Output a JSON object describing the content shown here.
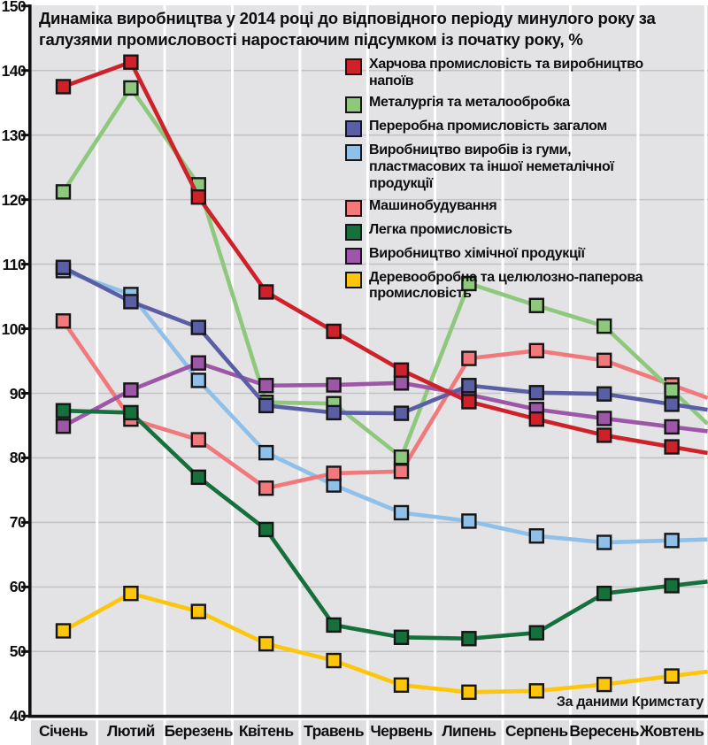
{
  "chart_data": {
    "type": "line",
    "title": "Динаміка виробництва у 2014 році до відповідного періоду минулого року за галузями промисловості наростаючим підсумком із початку року, %",
    "source_note": "За даними Кримстату",
    "y_axis": {
      "min": 40,
      "max": 150,
      "step": 10,
      "tick_labels": [
        "40",
        "50",
        "60",
        "70",
        "80",
        "90",
        "100",
        "110",
        "120",
        "130",
        "140",
        "150"
      ]
    },
    "grid": {
      "horizontal": true,
      "vertical_month_separators": true
    },
    "legend_position": "top-right-inside",
    "categories": [
      "Січень",
      "Лютий",
      "Березень",
      "Квітень",
      "Травень",
      "Червень",
      "Липень",
      "Серпень",
      "Вересень",
      "Жовтень"
    ],
    "series": [
      {
        "id": "food-industry",
        "name": "Харчова промисловість та виробництво напоїв",
        "color": "#cf2129",
        "values": [
          137.5,
          141.3,
          120.4,
          105.7,
          99.6,
          93.6,
          88.7,
          86.0,
          83.5,
          81.7
        ]
      },
      {
        "id": "metallurgy",
        "name": "Металургія та металообробка",
        "color": "#8ec87c",
        "values": [
          121.2,
          137.3,
          122.3,
          88.6,
          88.4,
          80.1,
          107.0,
          103.6,
          100.4,
          90.5
        ]
      },
      {
        "id": "processing-industry",
        "name": "Переробна промисловість загалом",
        "color": "#5a5fa5",
        "values": [
          109.5,
          104.2,
          100.2,
          88.1,
          87.0,
          86.9,
          91.2,
          90.1,
          89.9,
          88.3
        ]
      },
      {
        "id": "rubber-plastics",
        "name": "Виробництво виробів із гуми, пластмасових та іншої неметалічної продукції",
        "color": "#8fc0ea",
        "values": [
          109.0,
          105.3,
          92.0,
          80.8,
          75.8,
          71.5,
          70.2,
          67.9,
          66.9,
          67.2
        ]
      },
      {
        "id": "machine-building",
        "name": "Машинобудування",
        "color": "#f1797c",
        "values": [
          101.2,
          86.0,
          82.8,
          75.3,
          77.6,
          77.9,
          95.4,
          96.6,
          95.1,
          91.3
        ]
      },
      {
        "id": "light-industry",
        "name": "Легка промисловість",
        "color": "#15703b",
        "values": [
          87.3,
          87.0,
          77.0,
          68.9,
          54.1,
          52.2,
          52.0,
          52.9,
          59.0,
          60.2
        ]
      },
      {
        "id": "chemical-production",
        "name": "Виробництво хімічної продукції",
        "color": "#9c57a6",
        "values": [
          84.9,
          90.5,
          94.7,
          91.2,
          91.3,
          91.6,
          89.8,
          87.5,
          86.1,
          84.8
        ]
      },
      {
        "id": "wood-paper",
        "name": "Деревообробна та целюлозно-паперова промисловість",
        "color": "#fdc60b",
        "values": [
          53.2,
          59.0,
          56.2,
          51.2,
          48.6,
          44.8,
          43.7,
          43.9,
          44.9,
          46.2
        ]
      }
    ],
    "style_colors": {
      "plot_background": "#e3e3e5",
      "month_strip_background": "#dedee0",
      "gridline": "#c3c3c6",
      "separator": "#ffffff",
      "axis": "#111111",
      "text": "#0e0e0e"
    }
  }
}
